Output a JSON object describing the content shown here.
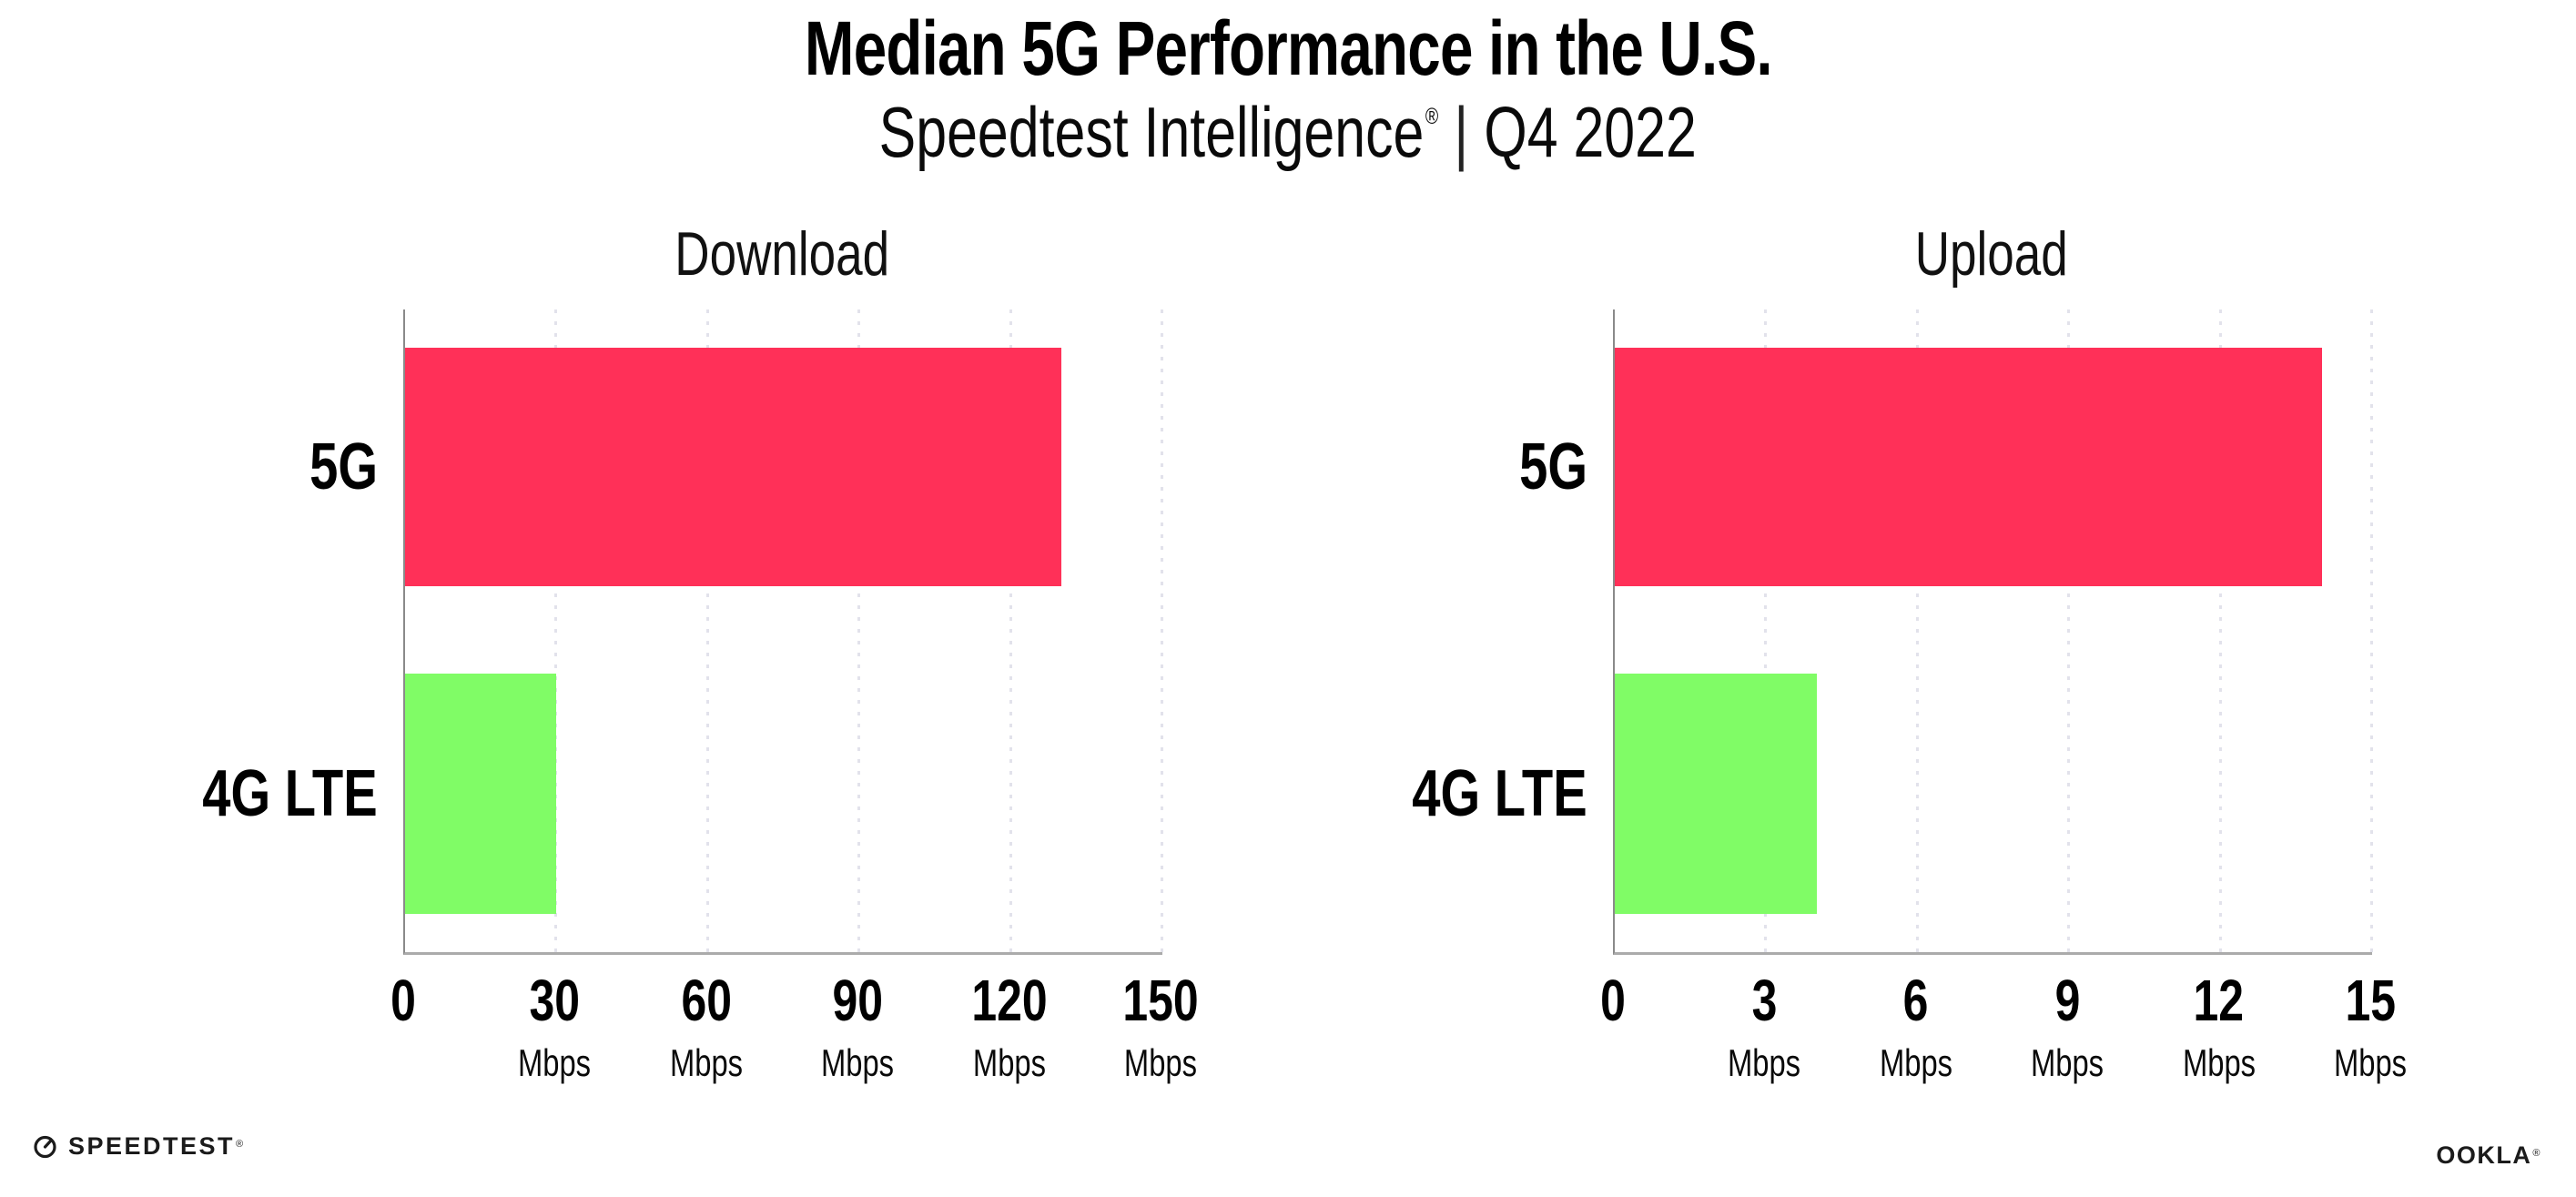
{
  "page": {
    "title": "Median 5G Performance in the U.S.",
    "subtitle_brand": "Speedtest Intelligence",
    "subtitle_reg": "®",
    "subtitle_separator": "|",
    "subtitle_period": "Q4 2022"
  },
  "colors": {
    "bar_5g_pink": "#FF3058",
    "bar_4g_green": "#80FC66",
    "axis_line": "#ABABAB",
    "y_axis_line": "#8A8A8A",
    "gridline": "#E2E2EB",
    "text": "#000000"
  },
  "chart_data": [
    {
      "type": "bar",
      "orientation": "horizontal",
      "title": "Download",
      "categories": [
        "5G",
        "4G LTE"
      ],
      "values": [
        130,
        30
      ],
      "unit": "Mbps",
      "xlim": [
        0,
        150
      ],
      "xticks": [
        0,
        30,
        60,
        90,
        120,
        150
      ],
      "bar_colors": [
        "#FF3058",
        "#80FC66"
      ],
      "grid": "dotted-vertical",
      "legend": "none"
    },
    {
      "type": "bar",
      "orientation": "horizontal",
      "title": "Upload",
      "categories": [
        "5G",
        "4G LTE"
      ],
      "values": [
        14,
        4
      ],
      "unit": "Mbps",
      "xlim": [
        0,
        15
      ],
      "xticks": [
        0,
        3,
        6,
        9,
        12,
        15
      ],
      "bar_colors": [
        "#FF3058",
        "#80FC66"
      ],
      "grid": "dotted-vertical",
      "legend": "none"
    }
  ],
  "footer": {
    "speedtest_wordmark": "SPEEDTEST",
    "speedtest_reg": "®",
    "ookla_wordmark": "OOKLA",
    "ookla_reg": "®"
  }
}
